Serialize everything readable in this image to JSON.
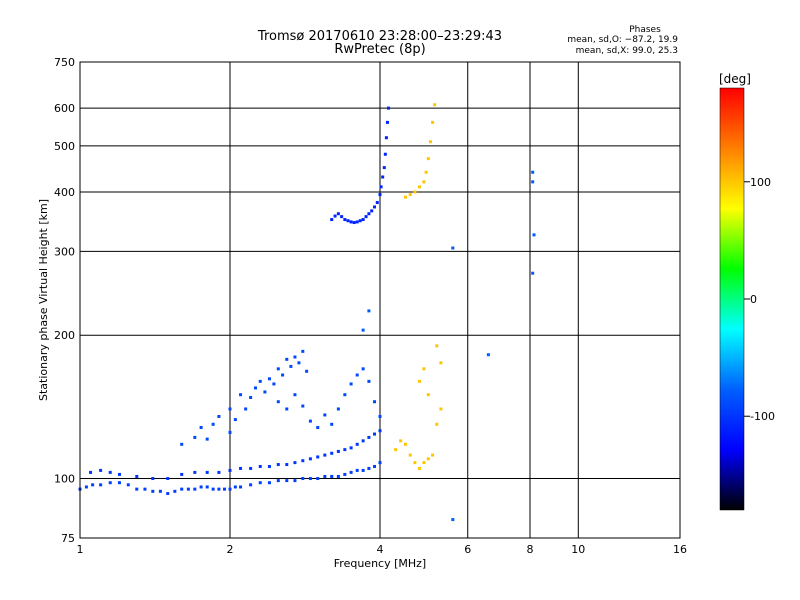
{
  "chart_data": {
    "type": "scatter",
    "title": "Tromsø 20170610 23:28:00–23:29:43",
    "subtitle": "RwPretec (8p)",
    "xlabel": "Frequency [MHz]",
    "ylabel": "Stationary phase Virtual Height [km]",
    "x_scale": "log",
    "y_scale": "log",
    "xlim": [
      1,
      16
    ],
    "ylim": [
      75,
      750
    ],
    "x_ticks": [
      1,
      2,
      4,
      6,
      8,
      10,
      16
    ],
    "y_ticks": [
      75,
      100,
      200,
      300,
      400,
      500,
      600,
      750
    ],
    "grid": true,
    "stats": {
      "heading": "Phases",
      "line_o": "mean, sd,O: −87.2, 19.9",
      "line_x": "mean, sd,X:  99.0, 25.3"
    },
    "colorbar": {
      "label": "[deg]",
      "range": [
        -180,
        180
      ],
      "ticks": [
        100,
        0,
        -100
      ],
      "colors": [
        "#ff0000",
        "#ff7f00",
        "#ffff00",
        "#00ff00",
        "#00ffff",
        "#0060ff",
        "#0000ff",
        "#000000"
      ]
    },
    "series": [
      {
        "role": "O-mode trace (low band)",
        "phase_deg": -95,
        "points": [
          [
            1.0,
            95
          ],
          [
            1.03,
            96
          ],
          [
            1.06,
            97
          ],
          [
            1.1,
            97
          ],
          [
            1.15,
            98
          ],
          [
            1.2,
            98
          ],
          [
            1.25,
            97
          ],
          [
            1.3,
            95
          ],
          [
            1.35,
            95
          ],
          [
            1.4,
            94
          ],
          [
            1.45,
            94
          ],
          [
            1.5,
            93
          ],
          [
            1.55,
            94
          ],
          [
            1.6,
            95
          ],
          [
            1.65,
            95
          ],
          [
            1.7,
            95
          ],
          [
            1.75,
            96
          ],
          [
            1.8,
            96
          ],
          [
            1.85,
            95
          ],
          [
            1.9,
            95
          ],
          [
            1.95,
            95
          ],
          [
            2.0,
            95
          ],
          [
            2.05,
            96
          ],
          [
            2.1,
            96
          ],
          [
            2.2,
            97
          ],
          [
            2.3,
            98
          ],
          [
            2.4,
            98
          ],
          [
            2.5,
            99
          ],
          [
            2.6,
            99
          ],
          [
            2.7,
            99
          ],
          [
            2.8,
            100
          ],
          [
            2.9,
            100
          ],
          [
            3.0,
            100
          ],
          [
            3.1,
            101
          ],
          [
            3.2,
            101
          ],
          [
            3.3,
            101
          ],
          [
            3.4,
            102
          ],
          [
            3.5,
            103
          ],
          [
            3.6,
            104
          ],
          [
            3.7,
            104
          ],
          [
            3.8,
            105
          ],
          [
            3.9,
            106
          ],
          [
            4.0,
            108
          ]
        ]
      },
      {
        "role": "O-mode trace (upper band)",
        "phase_deg": -100,
        "points": [
          [
            1.05,
            103
          ],
          [
            1.1,
            104
          ],
          [
            1.15,
            103
          ],
          [
            1.2,
            102
          ],
          [
            1.3,
            101
          ],
          [
            1.4,
            100
          ],
          [
            1.5,
            100
          ],
          [
            1.6,
            102
          ],
          [
            1.7,
            103
          ],
          [
            1.8,
            103
          ],
          [
            1.9,
            103
          ],
          [
            2.0,
            104
          ],
          [
            2.1,
            105
          ],
          [
            2.2,
            105
          ],
          [
            2.3,
            106
          ],
          [
            2.4,
            106
          ],
          [
            2.5,
            107
          ],
          [
            2.6,
            107
          ],
          [
            2.7,
            108
          ],
          [
            2.8,
            109
          ],
          [
            2.9,
            110
          ],
          [
            3.0,
            111
          ],
          [
            3.1,
            112
          ],
          [
            3.2,
            113
          ],
          [
            3.3,
            114
          ],
          [
            3.4,
            115
          ],
          [
            3.5,
            116
          ],
          [
            3.6,
            118
          ],
          [
            3.7,
            120
          ],
          [
            3.8,
            122
          ],
          [
            3.9,
            124
          ],
          [
            4.0,
            126
          ]
        ]
      },
      {
        "role": "O-mode spread echoes",
        "phase_deg": -90,
        "points": [
          [
            1.6,
            118
          ],
          [
            1.7,
            122
          ],
          [
            1.75,
            128
          ],
          [
            1.8,
            121
          ],
          [
            1.85,
            130
          ],
          [
            1.9,
            135
          ],
          [
            2.0,
            125
          ],
          [
            2.0,
            140
          ],
          [
            2.05,
            133
          ],
          [
            2.1,
            150
          ],
          [
            2.15,
            140
          ],
          [
            2.2,
            148
          ],
          [
            2.25,
            155
          ],
          [
            2.3,
            160
          ],
          [
            2.35,
            152
          ],
          [
            2.4,
            162
          ],
          [
            2.45,
            158
          ],
          [
            2.5,
            170
          ],
          [
            2.55,
            165
          ],
          [
            2.6,
            178
          ],
          [
            2.65,
            172
          ],
          [
            2.7,
            180
          ],
          [
            2.75,
            175
          ],
          [
            2.8,
            185
          ],
          [
            2.85,
            168
          ],
          [
            2.5,
            145
          ],
          [
            2.6,
            140
          ],
          [
            2.7,
            150
          ],
          [
            2.8,
            142
          ],
          [
            2.9,
            132
          ],
          [
            3.0,
            128
          ],
          [
            3.1,
            136
          ],
          [
            3.2,
            130
          ],
          [
            3.3,
            140
          ],
          [
            3.4,
            150
          ],
          [
            3.5,
            158
          ],
          [
            3.6,
            165
          ],
          [
            3.7,
            170
          ],
          [
            3.8,
            160
          ],
          [
            3.9,
            145
          ],
          [
            4.0,
            135
          ]
        ]
      },
      {
        "role": "F-layer trace",
        "phase_deg": -110,
        "points": [
          [
            3.2,
            350
          ],
          [
            3.25,
            356
          ],
          [
            3.3,
            360
          ],
          [
            3.35,
            355
          ],
          [
            3.4,
            350
          ],
          [
            3.45,
            348
          ],
          [
            3.5,
            346
          ],
          [
            3.55,
            345
          ],
          [
            3.6,
            346
          ],
          [
            3.65,
            348
          ],
          [
            3.7,
            350
          ],
          [
            3.75,
            355
          ],
          [
            3.8,
            360
          ],
          [
            3.85,
            365
          ],
          [
            3.9,
            372
          ],
          [
            3.95,
            380
          ],
          [
            4.0,
            395
          ],
          [
            4.02,
            410
          ],
          [
            4.05,
            430
          ],
          [
            4.08,
            450
          ],
          [
            4.1,
            480
          ],
          [
            4.12,
            520
          ],
          [
            4.14,
            560
          ],
          [
            4.16,
            600
          ]
        ]
      },
      {
        "role": "X-mode trace",
        "phase_deg": 100,
        "points": [
          [
            4.5,
            390
          ],
          [
            4.6,
            395
          ],
          [
            4.7,
            400
          ],
          [
            4.8,
            410
          ],
          [
            4.9,
            420
          ],
          [
            4.95,
            440
          ],
          [
            5.0,
            470
          ],
          [
            5.05,
            510
          ],
          [
            5.1,
            560
          ],
          [
            5.15,
            610
          ],
          [
            4.3,
            115
          ],
          [
            4.4,
            120
          ],
          [
            4.5,
            118
          ],
          [
            4.6,
            112
          ],
          [
            4.7,
            108
          ],
          [
            4.8,
            105
          ],
          [
            4.9,
            108
          ],
          [
            5.0,
            110
          ],
          [
            5.1,
            112
          ],
          [
            5.2,
            130
          ],
          [
            5.3,
            140
          ],
          [
            4.8,
            160
          ],
          [
            4.9,
            170
          ],
          [
            5.0,
            150
          ],
          [
            5.2,
            190
          ],
          [
            5.3,
            175
          ]
        ]
      },
      {
        "role": "isolated echoes",
        "phase_deg": -80,
        "points": [
          [
            8.1,
            440
          ],
          [
            8.1,
            420
          ],
          [
            8.15,
            325
          ],
          [
            8.1,
            270
          ],
          [
            5.6,
            305
          ],
          [
            5.6,
            82
          ],
          [
            6.6,
            182
          ],
          [
            3.8,
            225
          ],
          [
            3.7,
            205
          ]
        ]
      }
    ]
  }
}
